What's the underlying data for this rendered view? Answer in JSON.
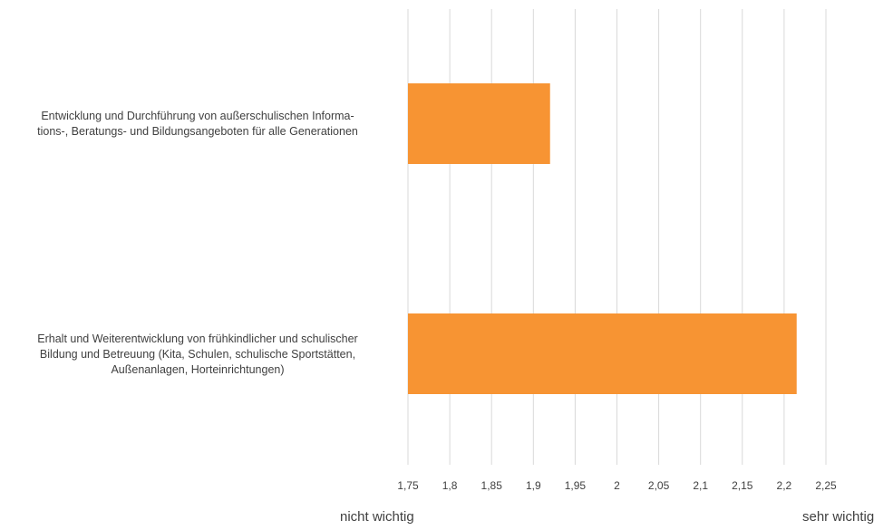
{
  "chart_data": {
    "type": "bar",
    "orientation": "horizontal",
    "categories": [
      "Entwicklung und Durchführung von außerschulischen Informa-\ntions-, Beratungs- und Bildungsangeboten für alle Generationen",
      "Erhalt und Weiterentwicklung von frühkindlicher und schulischer\nBildung und Betreuung (Kita, Schulen, schulische Sportstätten,\nAußenanlagen, Horteinrichtungen)"
    ],
    "values": [
      1.92,
      2.215
    ],
    "xlim": [
      1.75,
      2.25
    ],
    "xticks": [
      1.75,
      1.8,
      1.85,
      1.9,
      1.95,
      2.0,
      2.05,
      2.1,
      2.15,
      2.2,
      2.25
    ],
    "xtick_labels": [
      "1,75",
      "1,8",
      "1,85",
      "1,9",
      "1,95",
      "2",
      "2,05",
      "2,1",
      "2,15",
      "2,2",
      "2,25"
    ],
    "xaxis_left_label": "nicht wichtig",
    "xaxis_right_label": "sehr wichtig",
    "grid": "vertical",
    "legend": "none",
    "bar_color": "#F79433",
    "grid_color": "#D9D9D9",
    "text_color": "#404040"
  }
}
